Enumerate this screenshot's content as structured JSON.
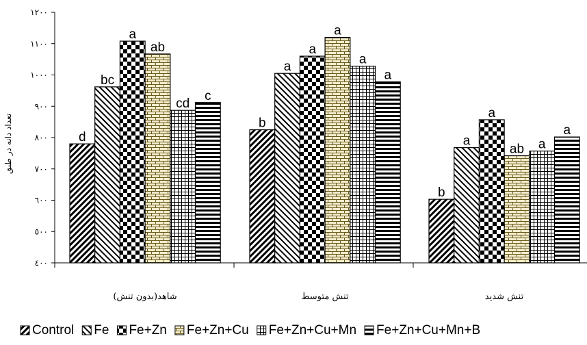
{
  "chart_data": {
    "type": "bar",
    "title": "",
    "xlabel": "",
    "ylabel": "تعداد دانه در طبق",
    "ylim": [
      400,
      1200
    ],
    "yticks": [
      400,
      500,
      600,
      700,
      800,
      900,
      1000,
      1100,
      1200
    ],
    "ytick_labels": [
      "٤٠٠",
      "٥٠٠",
      "٦٠٠",
      "٧٠٠",
      "٨٠٠",
      "٩٠٠",
      "١٠٠٠",
      "١١٠٠",
      "١٢٠٠"
    ],
    "grid": false,
    "legend_position": "bottom",
    "categories": [
      "شاهد(بدون تنش)",
      "تنش متوسط",
      "تنش شدید"
    ],
    "series": [
      {
        "name": "Control",
        "values": [
          780,
          825,
          603
        ],
        "labels": [
          "d",
          "b",
          "b"
        ]
      },
      {
        "name": "Fe",
        "values": [
          962,
          1005,
          768
        ],
        "labels": [
          "bc",
          "a",
          "a"
        ]
      },
      {
        "name": "Fe+Zn",
        "values": [
          1108,
          1060,
          857
        ],
        "labels": [
          "a",
          "a",
          "a"
        ]
      },
      {
        "name": "Fe+Zn+Cu",
        "values": [
          1067,
          1120,
          742
        ],
        "labels": [
          "ab",
          "a",
          "ab"
        ]
      },
      {
        "name": "Fe+Zn+Cu+Mn",
        "values": [
          887,
          1028,
          757
        ],
        "labels": [
          "cd",
          "a",
          "a"
        ]
      },
      {
        "name": "Fe+Zn+Cu+Mn+B",
        "values": [
          912,
          978,
          802
        ],
        "labels": [
          "c",
          "a",
          "a"
        ]
      }
    ]
  }
}
